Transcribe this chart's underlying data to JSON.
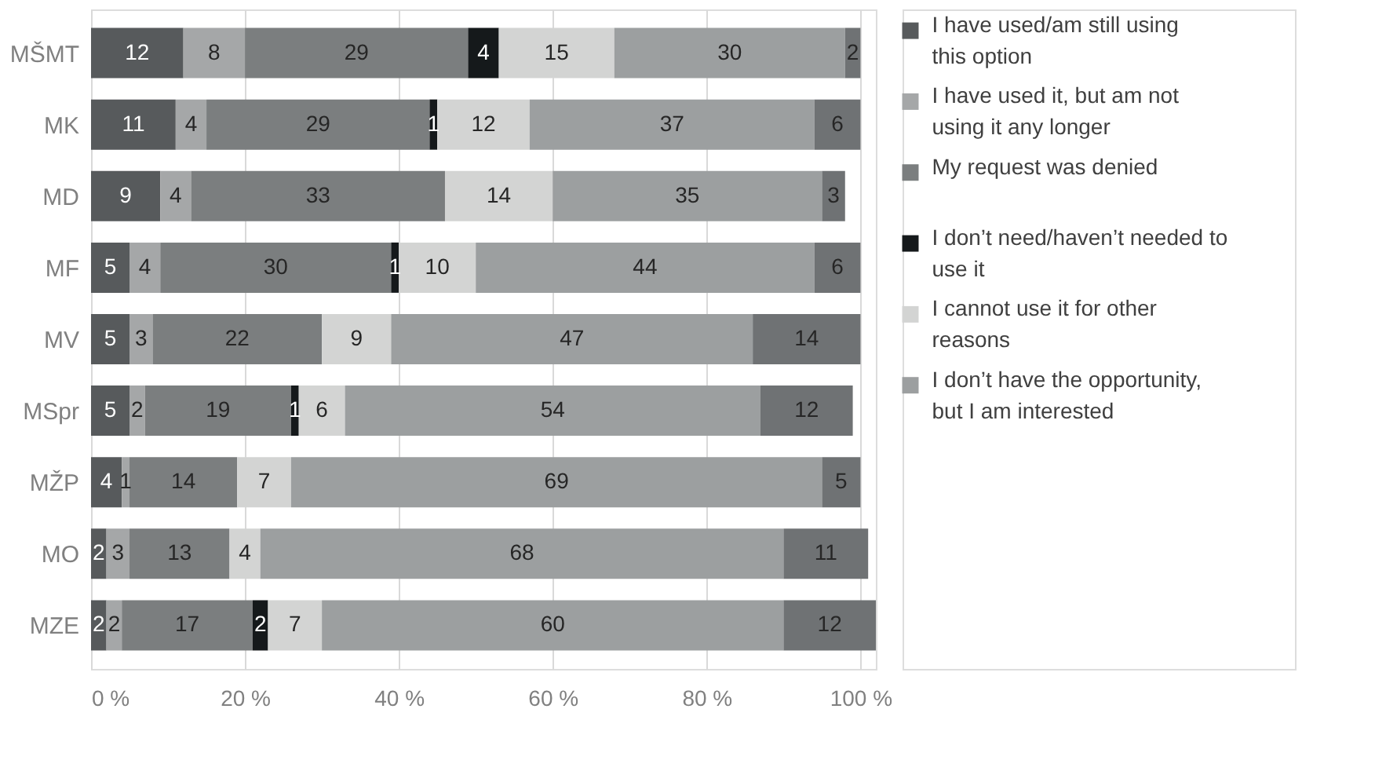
{
  "chart_data": {
    "type": "bar",
    "orientation": "horizontal",
    "stacked": true,
    "data_labels": true,
    "grid": "x",
    "legend": "right",
    "categories": [
      "MŠMT",
      "MK",
      "MD",
      "MF",
      "MV",
      "MSpr",
      "MŽP",
      "MO",
      "MZE"
    ],
    "series": [
      {
        "name": "I have used/am still using this option",
        "color": "#575a5c",
        "values": [
          12,
          11,
          9,
          5,
          5,
          5,
          4,
          2,
          2
        ]
      },
      {
        "name": "I have used it, but am not using it any longer",
        "color": "#a5a7a8",
        "values": [
          8,
          4,
          4,
          4,
          3,
          2,
          1,
          3,
          2
        ]
      },
      {
        "name": "My request was denied",
        "color": "#7b7e7f",
        "values": [
          29,
          29,
          33,
          30,
          22,
          19,
          14,
          13,
          17
        ]
      },
      {
        "name": "I don’t need/haven’t needed to use it",
        "color": "#15191b",
        "values": [
          4,
          1,
          null,
          1,
          null,
          1,
          null,
          null,
          2
        ]
      },
      {
        "name": "I cannot use it for other reasons",
        "color": "#d3d4d3",
        "values": [
          15,
          12,
          14,
          10,
          9,
          6,
          7,
          4,
          7
        ]
      },
      {
        "name": "I don’t have the opportunity, but I am interested",
        "color": "#9c9fa0",
        "values": [
          30,
          37,
          35,
          44,
          47,
          54,
          69,
          68,
          60
        ]
      },
      {
        "color": "#6f7274",
        "values": [
          2,
          6,
          3,
          6,
          14,
          12,
          5,
          11,
          12
        ]
      }
    ],
    "xlim": [
      0,
      102
    ],
    "xticks": [
      {
        "value": 0,
        "label": "0 %"
      },
      {
        "value": 20,
        "label": "20 %"
      },
      {
        "value": 40,
        "label": "40 %"
      },
      {
        "value": 60,
        "label": "60 %"
      },
      {
        "value": 80,
        "label": "80 %"
      },
      {
        "value": 100,
        "label": "100 %"
      }
    ]
  }
}
